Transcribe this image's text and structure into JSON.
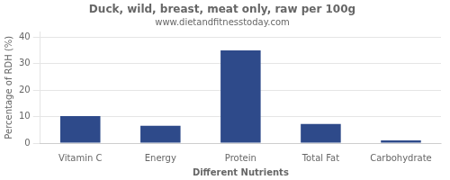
{
  "chart_data": {
    "type": "bar",
    "title": "Duck, wild, breast, meat only, raw per 100g",
    "subtitle": "www.dietandfitnesstoday.com",
    "xlabel": "Different Nutrients",
    "ylabel": "Percentage of RDH (%)",
    "categories": [
      "Vitamin C",
      "Energy",
      "Protein",
      "Total Fat",
      "Carbohydrate"
    ],
    "values": [
      10.2,
      6.5,
      35.0,
      7.2,
      1.0
    ],
    "color": "#2e4a8a",
    "ylim": [
      0,
      42
    ],
    "yticks": [
      0,
      10,
      20,
      30,
      40
    ],
    "grid": true
  }
}
